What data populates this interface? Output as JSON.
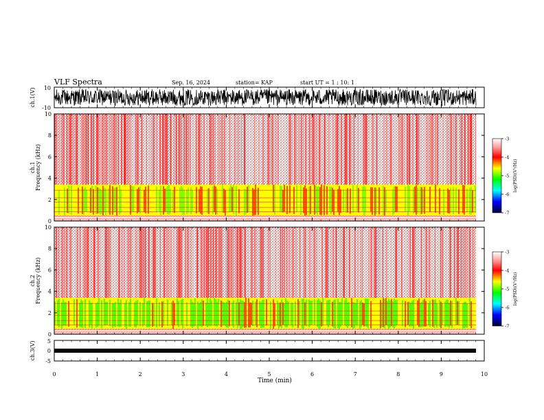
{
  "header": {
    "title": "VLF Spectra",
    "date": "Sep. 16, 2024",
    "station": "station= KAP",
    "start": "start  UT =   1 : 10: 1"
  },
  "colors": {
    "background": "#ffffff",
    "noise_red": "#ff0000",
    "band_yellow": "#ffff00",
    "band_green": "#00ff00",
    "waveform": "#000000"
  },
  "chart_data": [
    {
      "type": "line",
      "name": "ch1-waveform",
      "ylabel": "ch.1(V)",
      "ylim": [
        -10,
        10
      ],
      "y_ticks": [
        "10",
        "-10"
      ],
      "xlim": [
        0,
        10
      ],
      "amplitude_range": [
        -8,
        8
      ]
    },
    {
      "type": "heatmap",
      "name": "ch1-spectrogram",
      "ylabel": "ch.1\nFrequency (kHz)",
      "ylabel_line1": "ch.1",
      "ylabel_line2": "Frequency (kHz)",
      "ylim": [
        0,
        10
      ],
      "y_ticks": [
        "0",
        "2",
        "4",
        "6",
        "8",
        "10"
      ],
      "xlim": [
        0,
        10
      ],
      "bands": [
        {
          "from_khz": 0.0,
          "to_khz": 0.5,
          "level": "mixed"
        },
        {
          "from_khz": 0.5,
          "to_khz": 3.4,
          "level": "yellow-green"
        },
        {
          "from_khz": 3.4,
          "to_khz": 10.0,
          "level": "red-speckle"
        }
      ],
      "colorbar": {
        "label": "log(PSD)(V²/Hz)",
        "range": [
          -7,
          -3
        ],
        "ticks": [
          "-3",
          "-4",
          "-5",
          "-6",
          "-7"
        ]
      }
    },
    {
      "type": "heatmap",
      "name": "ch2-spectrogram",
      "ylabel": "ch.2\nFrequency (kHz)",
      "ylabel_line1": "ch.2",
      "ylabel_line2": "Frequency (kHz)",
      "ylim": [
        0,
        10
      ],
      "y_ticks": [
        "0",
        "2",
        "4",
        "6",
        "8",
        "10"
      ],
      "xlim": [
        0,
        10
      ],
      "bands": [
        {
          "from_khz": 0.0,
          "to_khz": 0.5,
          "level": "mixed"
        },
        {
          "from_khz": 0.5,
          "to_khz": 3.4,
          "level": "green-yellow"
        },
        {
          "from_khz": 3.4,
          "to_khz": 10.0,
          "level": "red-speckle"
        }
      ],
      "colorbar": {
        "label": "log(PSD)(V²/Hz)",
        "range": [
          -7,
          -3
        ],
        "ticks": [
          "-3",
          "-4",
          "-5",
          "-6",
          "-7"
        ]
      }
    },
    {
      "type": "line",
      "name": "ch3-waveform",
      "ylabel": "ch.3(V)",
      "ylim": [
        -5,
        5
      ],
      "y_ticks": [
        "5",
        "0",
        "-5"
      ],
      "xlim": [
        0,
        10
      ],
      "xlabel": "Time (min)",
      "x_ticks": [
        "0",
        "1",
        "2",
        "3",
        "4",
        "5",
        "6",
        "7",
        "8",
        "9",
        "10"
      ],
      "amplitude_range": [
        -0.5,
        0.5
      ]
    }
  ]
}
